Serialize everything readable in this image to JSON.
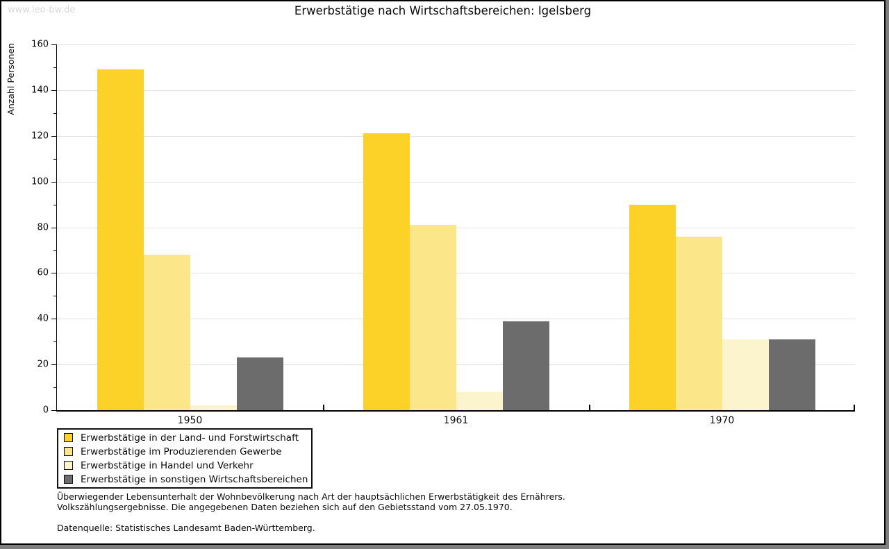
{
  "watermark": "www.leo-bw.de",
  "footer": {
    "line1": "Überwiegender Lebensunterhalt der Wohnbevölkerung nach Art der hauptsächlichen Erwerbstätigkeit des Ernährers.",
    "line2": "Volkszählungsergebnisse. Die angegebenen Daten beziehen sich auf den Gebietsstand vom 27.05.1970.",
    "source": "Datenquelle: Statistisches Landesamt Baden-Württemberg."
  },
  "chart_data": {
    "type": "bar",
    "title": "Erwerbstätige nach Wirtschaftsbereichen: Igelsberg",
    "xlabel": "",
    "ylabel": "Anzahl Personen",
    "categories": [
      "1950",
      "1961",
      "1970"
    ],
    "series": [
      {
        "name": "Erwerbstätige in der Land- und Forstwirtschaft",
        "color": "#FCD229",
        "values": [
          149,
          121,
          90
        ]
      },
      {
        "name": "Erwerbstätige im Produzierenden Gewerbe",
        "color": "#FBE78A",
        "values": [
          68,
          81,
          76
        ]
      },
      {
        "name": "Erwerbstätige in Handel und Verkehr",
        "color": "#FCF4CC",
        "values": [
          2,
          8,
          31
        ]
      },
      {
        "name": "Erwerbstätige in sonstigen Wirtschaftsbereichen",
        "color": "#6C6C6C",
        "values": [
          23,
          39,
          31
        ]
      }
    ],
    "ylim": [
      0,
      160
    ],
    "ytick_major_step": 20,
    "ytick_minor_step": 10,
    "grid": "horizontal-major",
    "gridline_color": "#E2E2E2",
    "legend_position": "bottom-left"
  }
}
